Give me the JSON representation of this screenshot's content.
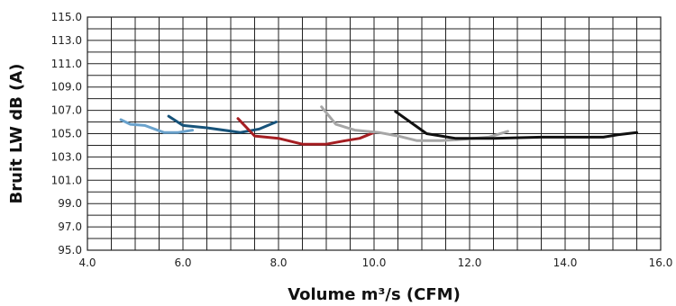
{
  "chart_data": {
    "type": "line",
    "xlabel": "Volume m³/s (CFM)",
    "ylabel": "Bruit LW dB (A)",
    "xlim": [
      4.0,
      16.0
    ],
    "ylim": [
      95.0,
      115.0
    ],
    "x_ticks": [
      "4.0",
      "6.0",
      "8.0",
      "10.0",
      "12.0",
      "14.0",
      "16.0"
    ],
    "y_ticks": [
      "115.0",
      "113.0",
      "111.0",
      "109.0",
      "107.0",
      "105.0",
      "103.0",
      "101.0",
      "99.0",
      "97.0",
      "95.0"
    ],
    "x_minor_step": 0.5,
    "y_minor_step": 1.0,
    "grid": true,
    "series": [
      {
        "color": "#6aa2cc",
        "x": [
          4.7,
          4.9,
          5.2,
          5.6,
          5.9,
          6.2
        ],
        "y": [
          106.2,
          105.8,
          105.7,
          105.1,
          105.1,
          105.3
        ]
      },
      {
        "color": "#17537a",
        "x": [
          5.7,
          6.0,
          6.5,
          7.2,
          7.6,
          7.95
        ],
        "y": [
          106.5,
          105.7,
          105.5,
          105.1,
          105.4,
          106.0
        ]
      },
      {
        "color": "#a51e22",
        "x": [
          7.15,
          7.5,
          8.0,
          8.5,
          9.0,
          9.4,
          9.7,
          10.0
        ],
        "y": [
          106.3,
          104.8,
          104.6,
          104.1,
          104.1,
          104.4,
          104.6,
          105.1
        ]
      },
      {
        "color": "#a6a6a6",
        "x": [
          8.9,
          9.2,
          9.6,
          10.1,
          10.5,
          10.9,
          11.4,
          11.8,
          12.4,
          12.8
        ],
        "y": [
          107.3,
          105.8,
          105.3,
          105.1,
          104.8,
          104.4,
          104.4,
          104.5,
          104.7,
          105.2
        ]
      },
      {
        "color": "#111111",
        "x": [
          10.45,
          11.1,
          11.7,
          12.5,
          13.5,
          14.8,
          15.1,
          15.5
        ],
        "y": [
          106.9,
          105.0,
          104.6,
          104.6,
          104.7,
          104.7,
          104.9,
          105.1
        ]
      }
    ]
  }
}
